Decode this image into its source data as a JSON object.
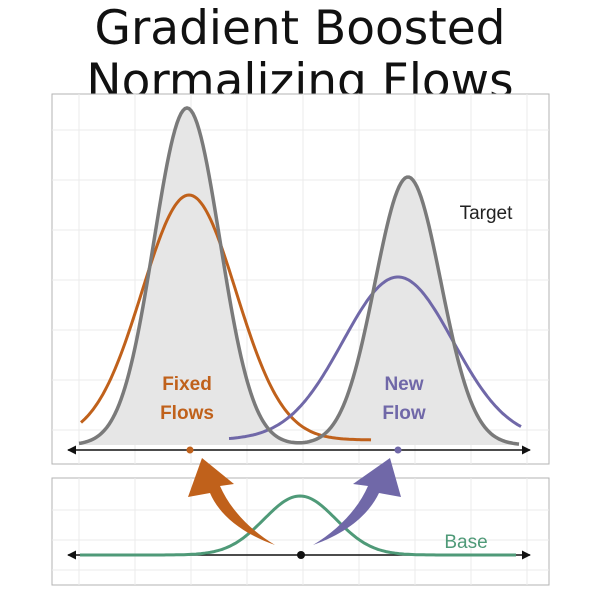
{
  "title": {
    "line1": "Gradient Boosted",
    "line2": "Normalizing Flows"
  },
  "labels": {
    "target": "Target",
    "fixed_line1": "Fixed",
    "fixed_line2": "Flows",
    "new_line1": "New",
    "new_line2": "Flow",
    "base": "Base"
  },
  "colors": {
    "target": "#7a7a7a",
    "target_fill": "#e6e6e6",
    "fixed": "#c0611b",
    "new": "#7068a8",
    "base": "#4f9a78",
    "axis": "#111111",
    "grid": "#ebebeb",
    "frame": "#b3b3b3"
  }
}
